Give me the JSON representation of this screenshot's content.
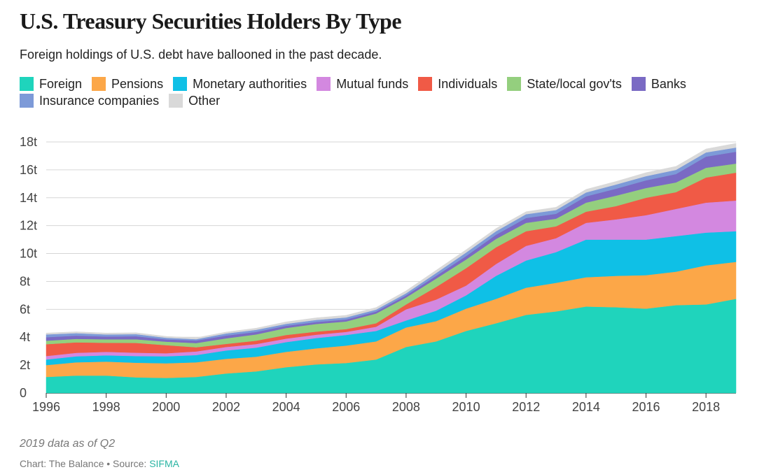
{
  "header": {
    "title": "U.S. Treasury Securities Holders By Type",
    "subtitle": "Foreign holdings of U.S. debt have ballooned in the past decade."
  },
  "footer": {
    "note": "2019 data as of Q2",
    "credit_prefix": "Chart: The Balance • Source: ",
    "source_link": "SIFMA"
  },
  "chart_data": {
    "type": "area",
    "stacked": true,
    "x": [
      1996,
      1997,
      1998,
      1999,
      2000,
      2001,
      2002,
      2003,
      2004,
      2005,
      2006,
      2007,
      2008,
      2009,
      2010,
      2011,
      2012,
      2013,
      2014,
      2015,
      2016,
      2017,
      2018,
      2019
    ],
    "xticks": [
      "1996",
      "1998",
      "2000",
      "2002",
      "2004",
      "2006",
      "2008",
      "2010",
      "2012",
      "2014",
      "2016",
      "2018"
    ],
    "xtick_values": [
      1996,
      1998,
      2000,
      2002,
      2004,
      2006,
      2008,
      2010,
      2012,
      2014,
      2016,
      2018
    ],
    "yticks": [
      "0",
      "2t",
      "4t",
      "6t",
      "8t",
      "10t",
      "12t",
      "14t",
      "16t",
      "18t"
    ],
    "ytick_values": [
      0,
      2,
      4,
      6,
      8,
      10,
      12,
      14,
      16,
      18
    ],
    "ylim": [
      0,
      18
    ],
    "xlim": [
      1996,
      2019
    ],
    "grid": true,
    "legend_position": "top",
    "title": "U.S. Treasury Securities Holders By Type",
    "series": [
      {
        "name": "Foreign",
        "color": "#1fd4bc",
        "values": [
          1.15,
          1.25,
          1.25,
          1.12,
          1.08,
          1.15,
          1.4,
          1.55,
          1.85,
          2.05,
          2.15,
          2.4,
          3.3,
          3.7,
          4.45,
          5.0,
          5.6,
          5.85,
          6.2,
          6.15,
          6.05,
          6.3,
          6.35,
          6.75
        ]
      },
      {
        "name": "Pensions",
        "color": "#fca748",
        "values": [
          0.85,
          0.95,
          1.0,
          1.05,
          1.05,
          1.05,
          1.05,
          1.05,
          1.1,
          1.15,
          1.25,
          1.3,
          1.4,
          1.45,
          1.6,
          1.75,
          1.95,
          2.05,
          2.1,
          2.25,
          2.4,
          2.4,
          2.8,
          2.65
        ]
      },
      {
        "name": "Monetary authorities",
        "color": "#0fc0e6",
        "values": [
          0.4,
          0.43,
          0.45,
          0.48,
          0.5,
          0.52,
          0.6,
          0.65,
          0.7,
          0.74,
          0.76,
          0.75,
          0.5,
          0.75,
          0.95,
          1.65,
          1.95,
          2.2,
          2.7,
          2.6,
          2.55,
          2.55,
          2.35,
          2.2
        ]
      },
      {
        "name": "Mutual funds",
        "color": "#d388e0",
        "values": [
          0.25,
          0.25,
          0.25,
          0.24,
          0.22,
          0.26,
          0.25,
          0.26,
          0.25,
          0.24,
          0.22,
          0.3,
          0.8,
          0.8,
          0.7,
          0.85,
          1.05,
          1.0,
          1.2,
          1.45,
          1.75,
          1.95,
          2.15,
          2.2
        ]
      },
      {
        "name": "Individuals",
        "color": "#f05a46",
        "values": [
          0.85,
          0.75,
          0.65,
          0.7,
          0.58,
          0.3,
          0.22,
          0.24,
          0.26,
          0.22,
          0.2,
          0.25,
          0.35,
          0.9,
          1.25,
          1.2,
          1.05,
          0.85,
          0.8,
          0.95,
          1.25,
          1.2,
          1.8,
          2.0
        ]
      },
      {
        "name": "State/local gov'ts",
        "color": "#94cf7e",
        "values": [
          0.25,
          0.25,
          0.25,
          0.26,
          0.25,
          0.3,
          0.4,
          0.45,
          0.5,
          0.55,
          0.55,
          0.7,
          0.5,
          0.6,
          0.62,
          0.6,
          0.6,
          0.55,
          0.65,
          0.75,
          0.7,
          0.7,
          0.7,
          0.65
        ]
      },
      {
        "name": "Banks",
        "color": "#7a6ac4",
        "values": [
          0.25,
          0.23,
          0.2,
          0.22,
          0.16,
          0.18,
          0.2,
          0.18,
          0.16,
          0.14,
          0.14,
          0.14,
          0.15,
          0.2,
          0.25,
          0.3,
          0.35,
          0.35,
          0.45,
          0.5,
          0.55,
          0.6,
          0.8,
          0.85
        ]
      },
      {
        "name": "Insurance companies",
        "color": "#7d9ad8",
        "values": [
          0.2,
          0.18,
          0.15,
          0.15,
          0.12,
          0.1,
          0.15,
          0.15,
          0.14,
          0.15,
          0.15,
          0.14,
          0.15,
          0.2,
          0.25,
          0.25,
          0.27,
          0.27,
          0.28,
          0.3,
          0.3,
          0.3,
          0.3,
          0.3
        ]
      },
      {
        "name": "Other",
        "color": "#d9d9d9",
        "values": [
          0.1,
          0.1,
          0.1,
          0.1,
          0.1,
          0.1,
          0.1,
          0.12,
          0.14,
          0.15,
          0.15,
          0.15,
          0.18,
          0.2,
          0.2,
          0.2,
          0.18,
          0.2,
          0.22,
          0.22,
          0.25,
          0.25,
          0.25,
          0.3
        ]
      }
    ]
  }
}
